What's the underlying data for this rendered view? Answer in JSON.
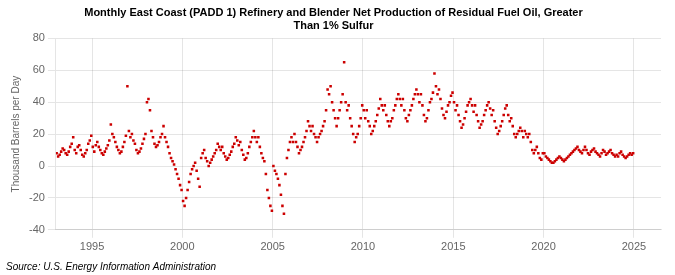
{
  "chart_data": {
    "type": "scatter",
    "title": [
      "Monthly East Coast (PADD 1) Refinery and Blender Net Production of Residual Fuel Oil, Greater",
      "Than 1% Sulfur"
    ],
    "ylabel": "Thousand Barrels per Day",
    "annotations": [
      "Source: U.S. Energy Information Administration"
    ],
    "color": "#cc0000",
    "marker": "square",
    "grid": true,
    "xlim": [
      1993.0,
      2026.5
    ],
    "xticks": [
      1995,
      2000,
      2005,
      2010,
      2015,
      2020,
      2025
    ],
    "ylim": [
      -40,
      80
    ],
    "yticks": [
      -40,
      -20,
      0,
      20,
      40,
      60,
      80
    ],
    "x": [
      1993.0417,
      1993.125,
      1993.2083,
      1993.2917,
      1993.375,
      1993.4583,
      1993.5417,
      1993.625,
      1993.7083,
      1993.7917,
      1993.875,
      1993.9583,
      1994.0417,
      1994.125,
      1994.2083,
      1994.2917,
      1994.375,
      1994.4583,
      1994.5417,
      1994.625,
      1994.7083,
      1994.7917,
      1994.875,
      1994.9583,
      1995.0417,
      1995.125,
      1995.2083,
      1995.2917,
      1995.375,
      1995.4583,
      1995.5417,
      1995.625,
      1995.7083,
      1995.7917,
      1995.875,
      1995.9583,
      1996.0417,
      1996.125,
      1996.2083,
      1996.2917,
      1996.375,
      1996.4583,
      1996.5417,
      1996.625,
      1996.7083,
      1996.7917,
      1996.875,
      1996.9583,
      1997.0417,
      1997.125,
      1997.2083,
      1997.2917,
      1997.375,
      1997.4583,
      1997.5417,
      1997.625,
      1997.7083,
      1997.7917,
      1997.875,
      1997.9583,
      1998.0417,
      1998.125,
      1998.2083,
      1998.2917,
      1998.375,
      1998.4583,
      1998.5417,
      1998.625,
      1998.7083,
      1998.7917,
      1998.875,
      1998.9583,
      1999.0417,
      1999.125,
      1999.2083,
      1999.2917,
      1999.375,
      1999.4583,
      1999.5417,
      1999.625,
      1999.7083,
      1999.7917,
      1999.875,
      1999.9583,
      2000.0417,
      2000.125,
      2000.2083,
      2000.2917,
      2000.375,
      2000.4583,
      2000.5417,
      2000.625,
      2000.7083,
      2000.7917,
      2000.875,
      2000.9583,
      2001.0417,
      2001.125,
      2001.2083,
      2001.2917,
      2001.375,
      2001.4583,
      2001.5417,
      2001.625,
      2001.7083,
      2001.7917,
      2001.875,
      2001.9583,
      2002.0417,
      2002.125,
      2002.2083,
      2002.2917,
      2002.375,
      2002.4583,
      2002.5417,
      2002.625,
      2002.7083,
      2002.7917,
      2002.875,
      2002.9583,
      2003.0417,
      2003.125,
      2003.2083,
      2003.2917,
      2003.375,
      2003.4583,
      2003.5417,
      2003.625,
      2003.7083,
      2003.7917,
      2003.875,
      2003.9583,
      2004.0417,
      2004.125,
      2004.2083,
      2004.2917,
      2004.375,
      2004.4583,
      2004.5417,
      2004.625,
      2004.7083,
      2004.7917,
      2004.875,
      2004.9583,
      2005.0417,
      2005.125,
      2005.2083,
      2005.2917,
      2005.375,
      2005.4583,
      2005.5417,
      2005.625,
      2005.7083,
      2005.7917,
      2005.875,
      2005.9583,
      2006.0417,
      2006.125,
      2006.2083,
      2006.2917,
      2006.375,
      2006.4583,
      2006.5417,
      2006.625,
      2006.7083,
      2006.7917,
      2006.875,
      2006.9583,
      2007.0417,
      2007.125,
      2007.2083,
      2007.2917,
      2007.375,
      2007.4583,
      2007.5417,
      2007.625,
      2007.7083,
      2007.7917,
      2007.875,
      2007.9583,
      2008.0417,
      2008.125,
      2008.2083,
      2008.2917,
      2008.375,
      2008.4583,
      2008.5417,
      2008.625,
      2008.7083,
      2008.7917,
      2008.875,
      2008.9583,
      2009.0417,
      2009.125,
      2009.2083,
      2009.2917,
      2009.375,
      2009.4583,
      2009.5417,
      2009.625,
      2009.7083,
      2009.7917,
      2009.875,
      2009.9583,
      2010.0417,
      2010.125,
      2010.2083,
      2010.2917,
      2010.375,
      2010.4583,
      2010.5417,
      2010.625,
      2010.7083,
      2010.7917,
      2010.875,
      2010.9583,
      2011.0417,
      2011.125,
      2011.2083,
      2011.2917,
      2011.375,
      2011.4583,
      2011.5417,
      2011.625,
      2011.7083,
      2011.7917,
      2011.875,
      2011.9583,
      2012.0417,
      2012.125,
      2012.2083,
      2012.2917,
      2012.375,
      2012.4583,
      2012.5417,
      2012.625,
      2012.7083,
      2012.7917,
      2012.875,
      2012.9583,
      2013.0417,
      2013.125,
      2013.2083,
      2013.2917,
      2013.375,
      2013.4583,
      2013.5417,
      2013.625,
      2013.7083,
      2013.7917,
      2013.875,
      2013.9583,
      2014.0417,
      2014.125,
      2014.2083,
      2014.2917,
      2014.375,
      2014.4583,
      2014.5417,
      2014.625,
      2014.7083,
      2014.7917,
      2014.875,
      2014.9583,
      2015.0417,
      2015.125,
      2015.2083,
      2015.2917,
      2015.375,
      2015.4583,
      2015.5417,
      2015.625,
      2015.7083,
      2015.7917,
      2015.875,
      2015.9583,
      2016.0417,
      2016.125,
      2016.2083,
      2016.2917,
      2016.375,
      2016.4583,
      2016.5417,
      2016.625,
      2016.7083,
      2016.7917,
      2016.875,
      2016.9583,
      2017.0417,
      2017.125,
      2017.2083,
      2017.2917,
      2017.375,
      2017.4583,
      2017.5417,
      2017.625,
      2017.7083,
      2017.7917,
      2017.875,
      2017.9583,
      2018.0417,
      2018.125,
      2018.2083,
      2018.2917,
      2018.375,
      2018.4583,
      2018.5417,
      2018.625,
      2018.7083,
      2018.7917,
      2018.875,
      2018.9583,
      2019.0417,
      2019.125,
      2019.2083,
      2019.2917,
      2019.375,
      2019.4583,
      2019.5417,
      2019.625,
      2019.7083,
      2019.7917,
      2019.875,
      2019.9583,
      2020.0417,
      2020.125,
      2020.2083,
      2020.2917,
      2020.375,
      2020.4583,
      2020.5417,
      2020.625,
      2020.7083,
      2020.7917,
      2020.875,
      2020.9583,
      2021.0417,
      2021.125,
      2021.2083,
      2021.2917,
      2021.375,
      2021.4583,
      2021.5417,
      2021.625,
      2021.7083,
      2021.7917,
      2021.875,
      2021.9583,
      2022.0417,
      2022.125,
      2022.2083,
      2022.2917,
      2022.375,
      2022.4583,
      2022.5417,
      2022.625,
      2022.7083,
      2022.7917,
      2022.875,
      2022.9583,
      2023.0417,
      2023.125,
      2023.2083,
      2023.2917,
      2023.375,
      2023.4583,
      2023.5417,
      2023.625,
      2023.7083,
      2023.7917,
      2023.875,
      2023.9583,
      2024.0417,
      2024.125,
      2024.2083,
      2024.2917,
      2024.375,
      2024.4583,
      2024.5417,
      2024.625,
      2024.7083,
      2024.7917,
      2024.875,
      2024.9583
    ],
    "values": [
      8,
      6,
      7,
      9,
      11,
      10,
      8,
      7,
      9,
      12,
      14,
      18,
      10,
      8,
      12,
      13,
      10,
      7,
      6,
      8,
      10,
      14,
      16,
      19,
      12,
      9,
      13,
      15,
      12,
      10,
      8,
      7,
      9,
      11,
      13,
      16,
      26,
      20,
      18,
      15,
      12,
      10,
      8,
      9,
      12,
      15,
      19,
      50,
      22,
      18,
      20,
      16,
      14,
      10,
      8,
      9,
      11,
      14,
      17,
      20,
      40,
      42,
      35,
      22,
      18,
      14,
      12,
      13,
      15,
      18,
      20,
      25,
      18,
      15,
      12,
      8,
      5,
      3,
      1,
      -2,
      -5,
      -8,
      -12,
      -15,
      -22,
      -25,
      -20,
      -15,
      -10,
      -5,
      -2,
      0,
      2,
      -3,
      -8,
      -13,
      5,
      8,
      10,
      5,
      3,
      0,
      2,
      4,
      6,
      8,
      10,
      14,
      12,
      10,
      12,
      8,
      6,
      4,
      5,
      7,
      9,
      12,
      14,
      18,
      16,
      13,
      15,
      10,
      7,
      4,
      5,
      8,
      12,
      15,
      18,
      22,
      18,
      15,
      18,
      12,
      8,
      5,
      3,
      -5,
      -15,
      -20,
      -25,
      -28,
      0,
      -3,
      -5,
      -8,
      -12,
      -18,
      -25,
      -30,
      -5,
      5,
      10,
      15,
      18,
      15,
      20,
      15,
      12,
      8,
      10,
      12,
      15,
      18,
      22,
      28,
      25,
      22,
      25,
      20,
      18,
      15,
      18,
      20,
      22,
      25,
      28,
      35,
      48,
      45,
      50,
      40,
      35,
      30,
      25,
      30,
      35,
      40,
      45,
      65,
      40,
      35,
      38,
      30,
      25,
      20,
      15,
      18,
      20,
      25,
      30,
      38,
      35,
      30,
      35,
      28,
      25,
      20,
      22,
      25,
      28,
      32,
      36,
      42,
      38,
      35,
      38,
      32,
      28,
      25,
      28,
      30,
      35,
      38,
      42,
      45,
      42,
      38,
      42,
      35,
      30,
      28,
      32,
      35,
      38,
      42,
      45,
      48,
      45,
      40,
      45,
      38,
      32,
      28,
      30,
      35,
      40,
      42,
      46,
      58,
      50,
      45,
      48,
      42,
      36,
      32,
      30,
      34,
      38,
      40,
      44,
      46,
      40,
      35,
      38,
      32,
      28,
      24,
      26,
      30,
      34,
      38,
      40,
      42,
      38,
      34,
      38,
      32,
      28,
      24,
      26,
      28,
      32,
      35,
      38,
      40,
      36,
      32,
      35,
      28,
      24,
      20,
      22,
      25,
      28,
      32,
      36,
      38,
      32,
      28,
      30,
      25,
      20,
      18,
      20,
      22,
      24,
      22,
      18,
      22,
      20,
      18,
      20,
      15,
      10,
      8,
      10,
      12,
      8,
      5,
      4,
      8,
      8,
      6,
      5,
      4,
      3,
      2,
      2,
      3,
      4,
      5,
      6,
      5,
      4,
      3,
      4,
      5,
      6,
      7,
      8,
      9,
      10,
      11,
      12,
      10,
      9,
      8,
      10,
      12,
      10,
      8,
      7,
      9,
      10,
      11,
      9,
      8,
      7,
      6,
      8,
      10,
      9,
      7,
      8,
      9,
      10,
      8,
      7,
      6,
      7,
      6,
      8,
      9,
      7,
      6,
      5,
      6,
      7,
      8,
      7,
      8
    ]
  }
}
